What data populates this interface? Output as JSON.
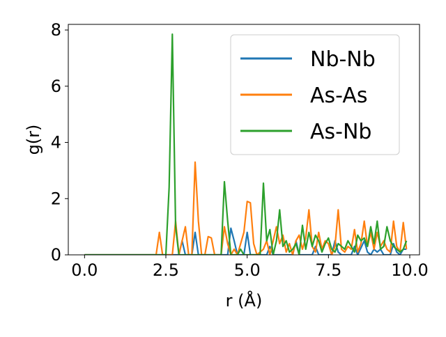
{
  "chart_data": {
    "type": "line",
    "title": "",
    "xlabel": "r (Å)",
    "ylabel": "g(r)",
    "xlim": [
      -0.5,
      10.3
    ],
    "ylim": [
      0,
      8.2
    ],
    "xticks": [
      0.0,
      2.5,
      5.0,
      7.5,
      10.0
    ],
    "xtick_labels": [
      "0.0",
      "2.5",
      "5.0",
      "7.5",
      "10.0"
    ],
    "yticks": [
      0,
      2,
      4,
      6,
      8
    ],
    "ytick_labels": [
      "0",
      "2",
      "4",
      "6",
      "8"
    ],
    "grid": false,
    "legend_position": "top-right",
    "series": [
      {
        "name": "Nb-Nb",
        "color": "#1f77b4",
        "points": [
          [
            0,
            0
          ],
          [
            2.3,
            0
          ],
          [
            2.9,
            0
          ],
          [
            3.0,
            0.5
          ],
          [
            3.1,
            0
          ],
          [
            3.3,
            0
          ],
          [
            3.4,
            0.8
          ],
          [
            3.5,
            0
          ],
          [
            4.4,
            0
          ],
          [
            4.5,
            0.95
          ],
          [
            4.6,
            0.5
          ],
          [
            4.7,
            0
          ],
          [
            4.9,
            0
          ],
          [
            5.0,
            0.8
          ],
          [
            5.1,
            0
          ],
          [
            5.6,
            0
          ],
          [
            5.7,
            0.3
          ],
          [
            5.8,
            0
          ],
          [
            6.4,
            0
          ],
          [
            6.5,
            0.5
          ],
          [
            6.6,
            0
          ],
          [
            7.0,
            0
          ],
          [
            7.1,
            0.3
          ],
          [
            7.2,
            0
          ],
          [
            7.6,
            0
          ],
          [
            7.7,
            0.5
          ],
          [
            7.8,
            0.1
          ],
          [
            7.9,
            0
          ],
          [
            8.2,
            0
          ],
          [
            8.3,
            0.3
          ],
          [
            8.4,
            0
          ],
          [
            8.6,
            0.5
          ],
          [
            8.7,
            0.1
          ],
          [
            8.8,
            0
          ],
          [
            8.9,
            0.2
          ],
          [
            9.0,
            0.1
          ],
          [
            9.1,
            0.2
          ],
          [
            9.2,
            0
          ],
          [
            9.4,
            0
          ],
          [
            9.5,
            0.4
          ],
          [
            9.6,
            0.1
          ],
          [
            9.7,
            0
          ],
          [
            9.8,
            0.2
          ],
          [
            9.9,
            0.2
          ]
        ]
      },
      {
        "name": "As-As",
        "color": "#ff7f0e",
        "points": [
          [
            0,
            0
          ],
          [
            2.2,
            0
          ],
          [
            2.3,
            0.8
          ],
          [
            2.4,
            0
          ],
          [
            2.7,
            0
          ],
          [
            2.8,
            1.2
          ],
          [
            2.9,
            0
          ],
          [
            3.1,
            1.0
          ],
          [
            3.2,
            0
          ],
          [
            3.3,
            0
          ],
          [
            3.4,
            3.3
          ],
          [
            3.5,
            1.2
          ],
          [
            3.6,
            0
          ],
          [
            3.7,
            0
          ],
          [
            3.8,
            0.65
          ],
          [
            3.9,
            0.6
          ],
          [
            4.0,
            0
          ],
          [
            4.2,
            0
          ],
          [
            4.3,
            1.0
          ],
          [
            4.4,
            0.4
          ],
          [
            4.5,
            0
          ],
          [
            4.6,
            0.2
          ],
          [
            4.7,
            0
          ],
          [
            4.9,
            0.8
          ],
          [
            5.0,
            1.9
          ],
          [
            5.1,
            1.85
          ],
          [
            5.2,
            0.4
          ],
          [
            5.3,
            0
          ],
          [
            5.5,
            0.2
          ],
          [
            5.6,
            0.5
          ],
          [
            5.7,
            0
          ],
          [
            5.9,
            1.0
          ],
          [
            6.0,
            0.4
          ],
          [
            6.1,
            0.7
          ],
          [
            6.2,
            0.1
          ],
          [
            6.3,
            0.4
          ],
          [
            6.4,
            0
          ],
          [
            6.5,
            0.5
          ],
          [
            6.6,
            0.7
          ],
          [
            6.7,
            0.2
          ],
          [
            6.8,
            0.6
          ],
          [
            6.9,
            1.6
          ],
          [
            7.0,
            0.3
          ],
          [
            7.1,
            0.1
          ],
          [
            7.2,
            0.8
          ],
          [
            7.3,
            0.2
          ],
          [
            7.4,
            0.5
          ],
          [
            7.5,
            0.4
          ],
          [
            7.6,
            0
          ],
          [
            7.7,
            0.3
          ],
          [
            7.8,
            1.6
          ],
          [
            7.9,
            0.2
          ],
          [
            8.0,
            0.1
          ],
          [
            8.1,
            0.3
          ],
          [
            8.2,
            0.2
          ],
          [
            8.3,
            0.9
          ],
          [
            8.4,
            0.1
          ],
          [
            8.5,
            0.4
          ],
          [
            8.6,
            1.2
          ],
          [
            8.7,
            0.3
          ],
          [
            8.8,
            0.8
          ],
          [
            8.9,
            0.2
          ],
          [
            9.0,
            0.8
          ],
          [
            9.1,
            0.3
          ],
          [
            9.2,
            0.5
          ],
          [
            9.3,
            0.2
          ],
          [
            9.4,
            0.1
          ],
          [
            9.5,
            1.2
          ],
          [
            9.6,
            0.3
          ],
          [
            9.7,
            0.1
          ],
          [
            9.8,
            1.15
          ],
          [
            9.9,
            0.2
          ]
        ]
      },
      {
        "name": "As-Nb",
        "color": "#2ca02c",
        "points": [
          [
            0,
            0
          ],
          [
            2.5,
            0
          ],
          [
            2.6,
            2.4
          ],
          [
            2.7,
            7.85
          ],
          [
            2.8,
            1.0
          ],
          [
            2.9,
            0
          ],
          [
            4.2,
            0
          ],
          [
            4.3,
            2.6
          ],
          [
            4.4,
            1.2
          ],
          [
            4.5,
            0
          ],
          [
            4.7,
            0
          ],
          [
            4.8,
            0.2
          ],
          [
            4.9,
            0
          ],
          [
            5.4,
            0
          ],
          [
            5.5,
            2.55
          ],
          [
            5.6,
            0.5
          ],
          [
            5.7,
            0.9
          ],
          [
            5.8,
            0
          ],
          [
            5.9,
            0.5
          ],
          [
            6.0,
            1.6
          ],
          [
            6.1,
            0.3
          ],
          [
            6.2,
            0.5
          ],
          [
            6.3,
            0.1
          ],
          [
            6.4,
            0.2
          ],
          [
            6.5,
            0.4
          ],
          [
            6.6,
            0
          ],
          [
            6.7,
            1.05
          ],
          [
            6.8,
            0.2
          ],
          [
            6.9,
            0.8
          ],
          [
            7.0,
            0.3
          ],
          [
            7.1,
            0.7
          ],
          [
            7.2,
            0.5
          ],
          [
            7.3,
            0.1
          ],
          [
            7.4,
            0.4
          ],
          [
            7.5,
            0.6
          ],
          [
            7.6,
            0.2
          ],
          [
            7.7,
            0.1
          ],
          [
            7.8,
            0.4
          ],
          [
            7.9,
            0.3
          ],
          [
            8.0,
            0.2
          ],
          [
            8.1,
            0.5
          ],
          [
            8.2,
            0.3
          ],
          [
            8.3,
            0.1
          ],
          [
            8.4,
            0.7
          ],
          [
            8.5,
            0.5
          ],
          [
            8.6,
            0.6
          ],
          [
            8.7,
            0.3
          ],
          [
            8.8,
            1.0
          ],
          [
            8.9,
            0.4
          ],
          [
            9.0,
            1.2
          ],
          [
            9.1,
            0.2
          ],
          [
            9.2,
            0.3
          ],
          [
            9.3,
            1.0
          ],
          [
            9.4,
            0.5
          ],
          [
            9.5,
            0.3
          ],
          [
            9.6,
            0.2
          ],
          [
            9.7,
            0.1
          ],
          [
            9.8,
            0.2
          ],
          [
            9.9,
            0.5
          ]
        ]
      }
    ]
  }
}
